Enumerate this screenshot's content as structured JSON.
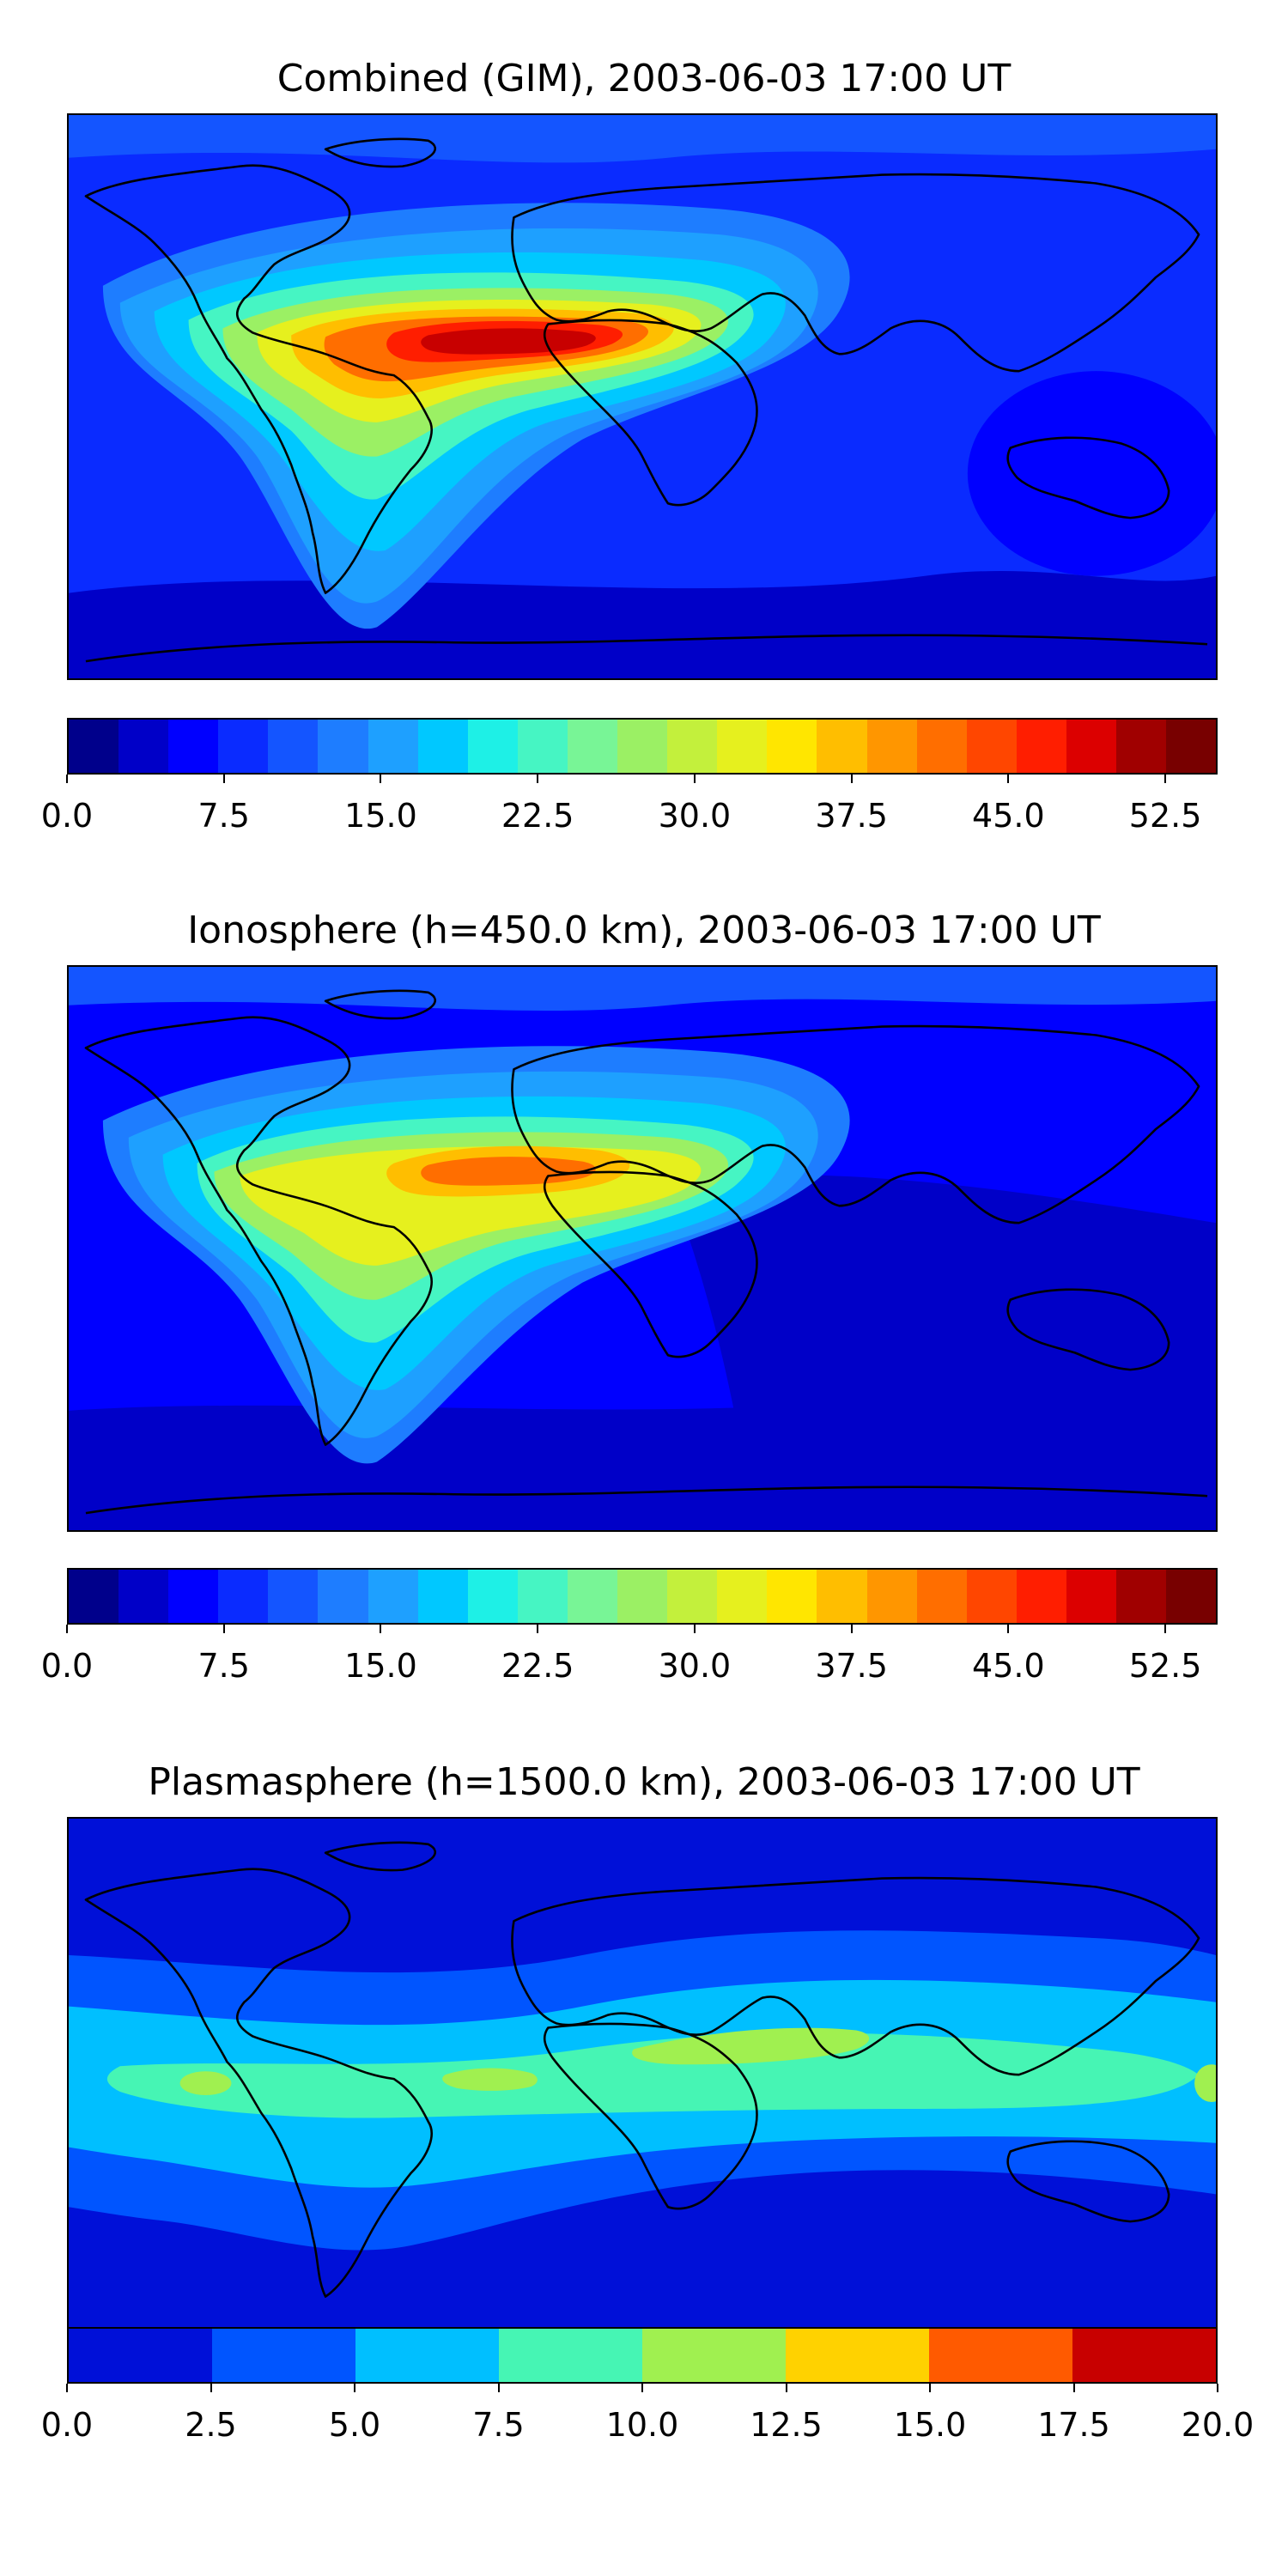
{
  "panels": [
    {
      "title": "Combined (GIM), 2003-06-03 17:00 UT",
      "colorbar": {
        "colors": [
          "#00008b",
          "#0000c8",
          "#0000ff",
          "#0a2bff",
          "#1455ff",
          "#1e7dff",
          "#1ea0ff",
          "#00c8ff",
          "#1ef0e6",
          "#46f5c3",
          "#78f596",
          "#9bf064",
          "#c3f03c",
          "#e6f01e",
          "#ffe600",
          "#ffbe00",
          "#ff9600",
          "#ff6e00",
          "#ff4600",
          "#ff1e00",
          "#dc0000",
          "#a00000",
          "#780000"
        ],
        "tick_labels": [
          "0.0",
          "7.5",
          "15.0",
          "22.5",
          "30.0",
          "37.5",
          "45.0",
          "52.5"
        ],
        "tick_values": [
          0,
          7.5,
          15,
          22.5,
          30,
          37.5,
          45,
          52.5
        ],
        "min": 0,
        "max": 55
      }
    },
    {
      "title": "Ionosphere  (h=450.0 km), 2003-06-03 17:00 UT",
      "colorbar": {
        "colors": [
          "#00008b",
          "#0000c8",
          "#0000ff",
          "#0a2bff",
          "#1455ff",
          "#1e7dff",
          "#1ea0ff",
          "#00c8ff",
          "#1ef0e6",
          "#46f5c3",
          "#78f596",
          "#9bf064",
          "#c3f03c",
          "#e6f01e",
          "#ffe600",
          "#ffbe00",
          "#ff9600",
          "#ff6e00",
          "#ff4600",
          "#ff1e00",
          "#dc0000",
          "#a00000",
          "#780000"
        ],
        "tick_labels": [
          "0.0",
          "7.5",
          "15.0",
          "22.5",
          "30.0",
          "37.5",
          "45.0",
          "52.5"
        ],
        "tick_values": [
          0,
          7.5,
          15,
          22.5,
          30,
          37.5,
          45,
          52.5
        ],
        "min": 0,
        "max": 55
      }
    },
    {
      "title": "Plasmasphere (h=1500.0 km), 2003-06-03 17:00 UT",
      "colorbar": {
        "colors": [
          "#0010d8",
          "#0055ff",
          "#00bfff",
          "#46f5b4",
          "#a0f050",
          "#ffd200",
          "#ff5a00",
          "#c80000"
        ],
        "tick_labels": [
          "0.0",
          "2.5",
          "5.0",
          "7.5",
          "10.0",
          "12.5",
          "15.0",
          "17.5",
          "20.0"
        ],
        "tick_values": [
          0,
          2.5,
          5,
          7.5,
          10,
          12.5,
          15,
          17.5,
          20
        ],
        "min": 0,
        "max": 20
      }
    }
  ]
}
